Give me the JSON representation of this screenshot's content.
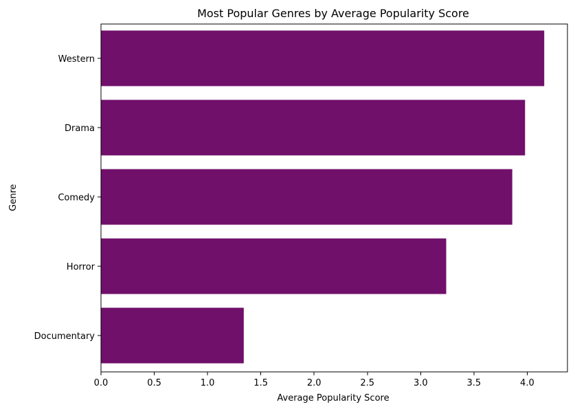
{
  "chart_data": {
    "type": "bar",
    "orientation": "horizontal",
    "title": "Most Popular Genres by Average Popularity Score",
    "xlabel": "Average Popularity Score",
    "ylabel": "Genre",
    "categories": [
      "Western",
      "Drama",
      "Comedy",
      "Horror",
      "Documentary"
    ],
    "values": [
      4.16,
      3.98,
      3.86,
      3.24,
      1.34
    ],
    "xlim": [
      0,
      4.35
    ],
    "xticks": [
      "0.0",
      "0.5",
      "1.0",
      "1.5",
      "2.0",
      "2.5",
      "3.0",
      "3.5",
      "4.0"
    ],
    "bar_color": "#70106b",
    "grid": false,
    "legend": "none"
  }
}
